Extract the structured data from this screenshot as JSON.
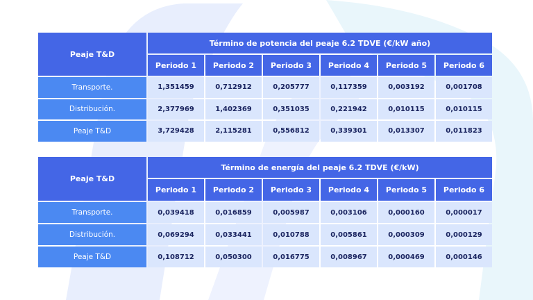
{
  "colors": {
    "header_bg": "#4466e6",
    "row_label_bg": "#4b89f2",
    "cell_bg": "#dae6fd",
    "cell_text": "#1b2560",
    "background_shapes": "#e6ecfd"
  },
  "tables": [
    {
      "corner_label": "Peaje T&D",
      "title": "Término de potencia del peaje 6.2 TDVE (€/kW año)",
      "periods": [
        "Periodo 1",
        "Periodo 2",
        "Periodo 3",
        "Periodo 4",
        "Periodo 5",
        "Periodo 6"
      ],
      "rows": [
        {
          "label": "Transporte.",
          "values": [
            "1,351459",
            "0,712912",
            "0,205777",
            "0,117359",
            "0,003192",
            "0,001708"
          ]
        },
        {
          "label": "Distribución.",
          "values": [
            "2,377969",
            "1,402369",
            "0,351035",
            "0,221942",
            "0,010115",
            "0,010115"
          ]
        },
        {
          "label": "Peaje T&D",
          "values": [
            "3,729428",
            "2,115281",
            "0,556812",
            "0,339301",
            "0,013307",
            "0,011823"
          ]
        }
      ]
    },
    {
      "corner_label": "Peaje T&D",
      "title": "Término de energía del peaje 6.2 TDVE (€/kW)",
      "periods": [
        "Periodo 1",
        "Periodo 2",
        "Periodo 3",
        "Periodo 4",
        "Periodo 5",
        "Periodo 6"
      ],
      "rows": [
        {
          "label": "Transporte.",
          "values": [
            "0,039418",
            "0,016859",
            "0,005987",
            "0,003106",
            "0,000160",
            "0,000017"
          ]
        },
        {
          "label": "Distribución.",
          "values": [
            "0,069294",
            "0,033441",
            "0,010788",
            "0,005861",
            "0,000309",
            "0,000129"
          ]
        },
        {
          "label": "Peaje T&D",
          "values": [
            "0,108712",
            "0,050300",
            "0,016775",
            "0,008967",
            "0,000469",
            "0,000146"
          ]
        }
      ]
    }
  ]
}
